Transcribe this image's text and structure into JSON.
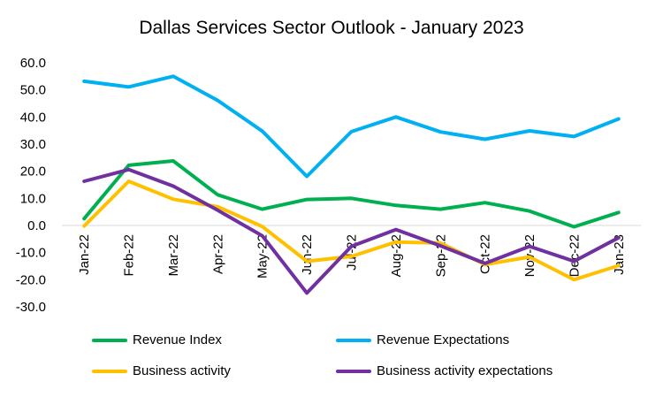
{
  "chart_data": {
    "type": "line",
    "title": "Dallas Services Sector Outlook - January 2023",
    "xlabel": "",
    "ylabel": "",
    "categories": [
      "Jan-22",
      "Feb-22",
      "Mar-22",
      "Apr-22",
      "May-22",
      "Jun-22",
      "Jul-22",
      "Aug-22",
      "Sep-22",
      "Oct-22",
      "Nov-22",
      "Dec-22",
      "Jan-23"
    ],
    "ylim": [
      -30,
      60
    ],
    "yticks": [
      "60.0",
      "50.0",
      "40.0",
      "30.0",
      "20.0",
      "10.0",
      "0.0",
      "-10.0",
      "-20.0",
      "-30.0"
    ],
    "ytick_values": [
      60,
      50,
      40,
      30,
      20,
      10,
      0,
      -10,
      -20,
      -30
    ],
    "grid": false,
    "legend_position": "bottom",
    "series": [
      {
        "name": "Revenue Index",
        "color": "#00B050",
        "values": [
          2.5,
          22.2,
          23.8,
          11.3,
          6.0,
          9.6,
          10.0,
          7.4,
          6.0,
          8.4,
          5.3,
          -0.5,
          4.8
        ]
      },
      {
        "name": "Revenue Expectations",
        "color": "#00B0F0",
        "values": [
          53.2,
          51.1,
          55.0,
          46.1,
          34.8,
          18.1,
          34.6,
          40.0,
          34.5,
          31.8,
          34.9,
          32.8,
          39.3
        ]
      },
      {
        "name": "Business activity",
        "color": "#FFC000",
        "values": [
          -0.2,
          16.3,
          9.7,
          6.9,
          -0.4,
          -13.2,
          -11.4,
          -6.1,
          -6.5,
          -14.4,
          -11.6,
          -20.0,
          -14.8
        ]
      },
      {
        "name": "Business activity expectations",
        "color": "#7030A0",
        "values": [
          16.3,
          20.6,
          14.5,
          5.6,
          -3.8,
          -24.9,
          -7.7,
          -1.5,
          -7.5,
          -14.0,
          -7.7,
          -13.2,
          -4.5
        ]
      }
    ]
  }
}
